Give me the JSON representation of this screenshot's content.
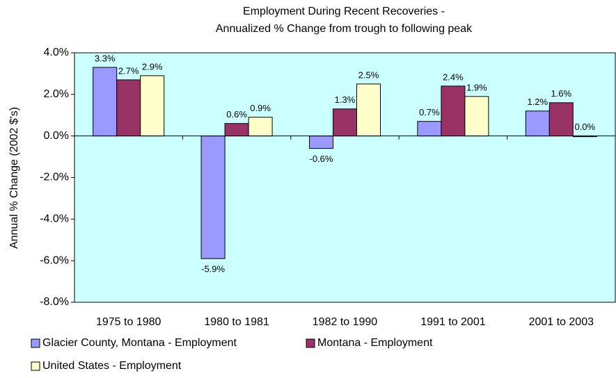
{
  "chart_data": {
    "type": "bar",
    "title": [
      "Employment During Recent Recoveries -",
      "Annualized % Change from trough to following peak"
    ],
    "y_label": "Annual % Change (2002 $'s)",
    "categories": [
      "1975 to 1980",
      "1980 to 1981",
      "1982 to 1990",
      "1991 to 2001",
      "2001 to 2003"
    ],
    "series": [
      {
        "name": "Glacier County, Montana - Employment",
        "color": "#9999ff",
        "values": [
          3.3,
          -5.9,
          -0.6,
          0.7,
          1.2
        ],
        "value_labels": [
          "3.3%",
          "-5.9%",
          "-0.6%",
          "0.7%",
          "1.2%"
        ]
      },
      {
        "name": "Montana - Employment",
        "color": "#993366",
        "values": [
          2.7,
          0.6,
          1.3,
          2.4,
          1.6
        ],
        "value_labels": [
          "2.7%",
          "0.6%",
          "1.3%",
          "2.4%",
          "1.6%"
        ]
      },
      {
        "name": "United States - Employment",
        "color": "#ffffcc",
        "values": [
          2.9,
          0.9,
          2.5,
          1.9,
          0.0
        ],
        "value_labels": [
          "2.9%",
          "0.9%",
          "2.5%",
          "1.9%",
          "0.0%"
        ]
      }
    ],
    "ylim": [
      -8,
      4
    ],
    "yticks": [
      {
        "value": 4,
        "label": "4.0%"
      },
      {
        "value": 2,
        "label": "2.0%"
      },
      {
        "value": 0,
        "label": "0.0%"
      },
      {
        "value": -2,
        "label": "-2.0%"
      },
      {
        "value": -4,
        "label": "-4.0%"
      },
      {
        "value": -6,
        "label": "-6.0%"
      },
      {
        "value": -8,
        "label": "-8.0%"
      }
    ],
    "plot_background": "#ccffff"
  }
}
